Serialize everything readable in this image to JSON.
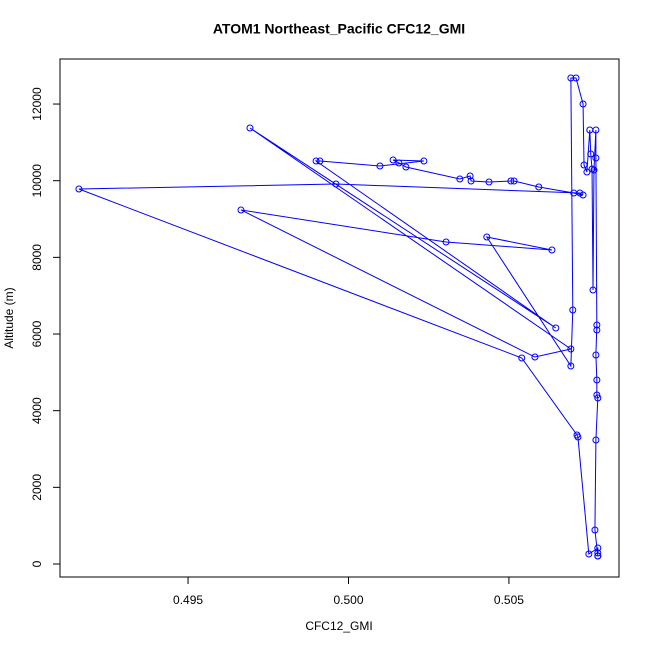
{
  "chart_data": {
    "type": "line",
    "title": "ATOM1 Northeast_Pacific CFC12_GMI",
    "x_label": "CFC12_GMI",
    "y_label": "Altitude (m)",
    "series": [
      {
        "color": "#0000ff",
        "x": [
          0.50777,
          0.50777,
          0.50777,
          0.50749,
          0.50715,
          0.50712,
          0.5054,
          0.4916,
          0.49961,
          0.50721,
          0.50731,
          0.50702,
          0.50593,
          0.50516,
          0.50506,
          0.50438,
          0.50382,
          0.50379,
          0.50347,
          0.50179,
          0.50157,
          0.50139,
          0.50235,
          0.50098,
          0.49911,
          0.49899,
          0.50646,
          0.49693,
          0.50693,
          0.50581,
          0.49665,
          0.50304,
          0.50634,
          0.50431,
          0.50693,
          0.50699,
          0.50693,
          0.50709,
          0.50731,
          0.50734,
          0.50743,
          0.50752,
          0.50755,
          0.50759,
          0.50762,
          0.50765,
          0.50771,
          0.50771,
          0.50774,
          0.50774,
          0.50771,
          0.50774,
          0.50774,
          0.50777,
          0.50771,
          0.50768,
          0.50777
        ],
        "values": [
          209,
          287,
          417,
          261,
          3313,
          3366,
          5374,
          9783,
          9914,
          9679,
          9627,
          9679,
          9836,
          9992,
          9992,
          9966,
          9992,
          10123,
          10044,
          10358,
          10462,
          10540,
          10514,
          10384,
          10514,
          10514,
          6157,
          11375,
          5609,
          5400,
          9236,
          8401,
          8192,
          8531,
          5165,
          6627,
          12679,
          12679,
          12001,
          10410,
          10227,
          11323,
          10697,
          10305,
          7148,
          10279,
          11323,
          10592,
          6105,
          6235,
          5453,
          4800,
          4409,
          4331,
          3235,
          887,
          209
        ]
      }
    ],
    "xlim": [
      0.49101,
      0.50843
    ],
    "ylim": [
      -339,
      13175
    ],
    "xticks": [
      0.495,
      {
        "value": 0.5,
        "label": "0.500"
      },
      0.505
    ],
    "yticks": [
      0,
      2000,
      4000,
      6000,
      8000,
      10000,
      12000
    ]
  }
}
